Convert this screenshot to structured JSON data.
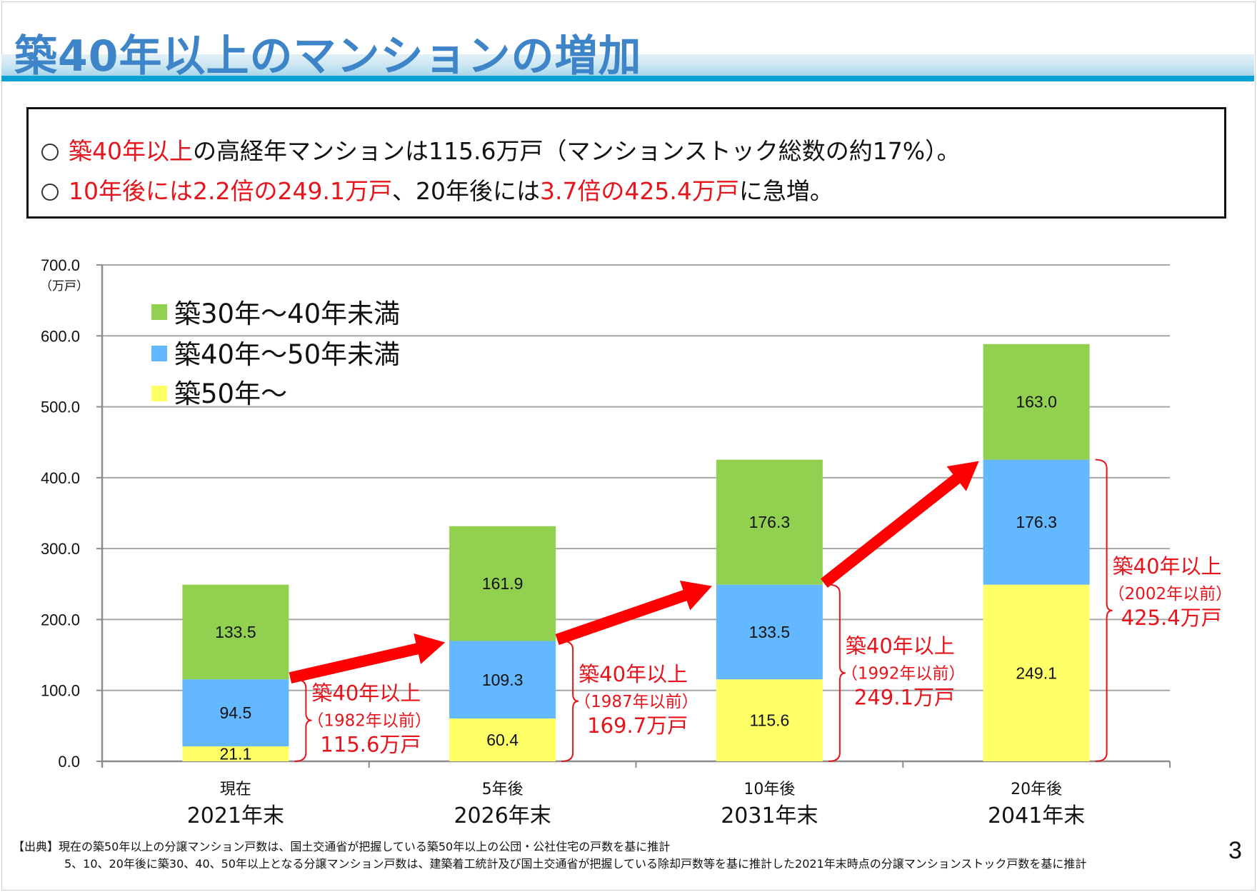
{
  "slide": {
    "title": "築40年以上のマンションの増加",
    "page_number": "3",
    "summary": {
      "line1": [
        {
          "text": "築40年以上",
          "red": true
        },
        {
          "text": "の高経年マンションは115.6万戸（マンションストック総数の約17%）。",
          "red": false
        }
      ],
      "line2": [
        {
          "text": "10年後には2.2倍の249.1万戸",
          "red": true
        },
        {
          "text": "、20年後には",
          "red": false
        },
        {
          "text": "3.7倍の425.4万戸",
          "red": true
        },
        {
          "text": "に急増。",
          "red": false
        }
      ]
    },
    "footer": {
      "line1": "【出典】現在の築50年以上の分譲マンション戸数は、国土交通省が把握している築50年以上の公団・公社住宅の戸数を基に推計",
      "line2": "5、10、20年後に築30、40、50年以上となる分譲マンション戸数は、建築着工統計及び国土交通省が把握している除却戸数等を基に推計した2021年末時点の分譲マンションストック戸数を基に推計"
    }
  },
  "colors": {
    "green": "#92d050",
    "blue": "#63b8ff",
    "yellow": "#ffff66",
    "red": "#ff0000",
    "annotation_red": "#e8141b",
    "title_blue": "#3d84c8",
    "rule_blue": "#0aa2d2"
  },
  "chart_data": {
    "type": "bar",
    "stacked": true,
    "title": "",
    "xlabel": "",
    "ylabel": "",
    "y_unit": "（万戸）",
    "ylim": [
      0,
      700
    ],
    "yticks": [
      0,
      100,
      200,
      300,
      400,
      500,
      600,
      700
    ],
    "ytick_labels": [
      "0.0",
      "100.0",
      "200.0",
      "300.0",
      "400.0",
      "500.0",
      "600.0",
      "700.0"
    ],
    "grid": true,
    "legend_position": "top-left",
    "categories": [
      "現在 2021年末",
      "5年後 2026年末",
      "10年後 2031年末",
      "20年後 2041年末"
    ],
    "category_labels": [
      {
        "top": "現在",
        "bottom": "2021年末"
      },
      {
        "top": "5年後",
        "bottom": "2026年末"
      },
      {
        "top": "10年後",
        "bottom": "2031年末"
      },
      {
        "top": "20年後",
        "bottom": "2041年末"
      }
    ],
    "series": [
      {
        "name": "築50年～",
        "color": "#ffff66",
        "values": [
          21.1,
          60.4,
          115.6,
          249.1
        ],
        "labels": [
          "21.1",
          "60.4",
          "115.6",
          "249.1"
        ]
      },
      {
        "name": "築40年～50年未満",
        "color": "#63b8ff",
        "values": [
          94.5,
          109.3,
          133.5,
          176.3
        ],
        "labels": [
          "94.5",
          "109.3",
          "133.5",
          "176.3"
        ]
      },
      {
        "name": "築30年～40年未満",
        "color": "#92d050",
        "values": [
          133.5,
          161.9,
          176.3,
          163.0
        ],
        "labels": [
          "133.5",
          "161.9",
          "176.3",
          "163.0"
        ]
      }
    ],
    "legend": [
      "築30年～40年未満",
      "築40年～50年未満",
      "築50年～"
    ],
    "annotations": [
      {
        "line1": "築40年以上",
        "line2": "（1982年以前）",
        "line3": "115.6万戸",
        "total": 115.6
      },
      {
        "line1": "築40年以上",
        "line2": "（1987年以前）",
        "line3": "169.7万戸",
        "total": 169.7
      },
      {
        "line1": "築40年以上",
        "line2": "（1992年以前）",
        "line3": "249.1万戸",
        "total": 249.1
      },
      {
        "line1": "築40年以上",
        "line2": "（2002年以前）",
        "line3": "425.4万戸",
        "total": 425.4
      }
    ],
    "trend_arrows": 3
  }
}
